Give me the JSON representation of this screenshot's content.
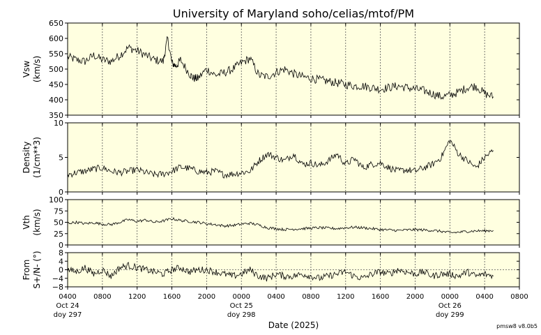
{
  "title": "University of Maryland  soho/celias/mtof/PM",
  "credit": "pmsw8 v8.0b5",
  "x_axis": {
    "label": "Date (2025)",
    "ticks": [
      "0400",
      "0800",
      "1200",
      "1600",
      "2000",
      "0000",
      "0400",
      "0800",
      "1200",
      "1600",
      "2000",
      "0000",
      "0400",
      "0800"
    ],
    "day_labels": [
      {
        "tick_index": 0,
        "date": "Oct 24",
        "doy": "doy 297"
      },
      {
        "tick_index": 5,
        "date": "Oct 25",
        "doy": "doy 298"
      },
      {
        "tick_index": 11,
        "date": "Oct 26",
        "doy": "doy 299"
      }
    ],
    "range_hours": [
      4,
      56
    ]
  },
  "colors": {
    "panel_bg": "#ffffe0",
    "line": "#000000",
    "grid": "#555555"
  },
  "chart_data": [
    {
      "type": "line",
      "ylabel_lines": [
        "Vsw",
        "(km/s)"
      ],
      "ylim": [
        350,
        650
      ],
      "yticks": [
        350,
        400,
        450,
        500,
        550,
        600,
        650
      ],
      "series": [
        {
          "x": [
            4,
            5,
            6,
            7,
            8,
            9,
            10,
            11,
            12,
            13,
            14,
            15,
            15.5,
            16,
            16.5,
            17,
            18,
            18.5,
            19,
            20,
            21,
            22,
            23,
            24,
            25,
            26,
            27,
            28,
            29,
            30,
            31,
            32,
            33,
            34,
            35,
            36,
            37,
            38,
            39,
            40,
            41,
            42,
            43,
            44,
            45,
            46,
            47,
            48,
            49,
            50,
            51,
            52,
            53
          ],
          "y": [
            540,
            530,
            525,
            545,
            530,
            525,
            545,
            570,
            560,
            545,
            530,
            525,
            600,
            520,
            510,
            530,
            485,
            470,
            470,
            500,
            480,
            488,
            500,
            520,
            535,
            480,
            475,
            490,
            500,
            485,
            475,
            470,
            465,
            460,
            455,
            450,
            445,
            445,
            440,
            435,
            440,
            445,
            440,
            435,
            430,
            420,
            410,
            415,
            425,
            440,
            445,
            420,
            410
          ]
        }
      ]
    },
    {
      "type": "line",
      "ylabel_lines": [
        "Density",
        "(1/cm**3)"
      ],
      "ylim": [
        0,
        10
      ],
      "yticks": [
        0,
        5,
        10
      ],
      "series": [
        {
          "x": [
            4,
            5,
            6,
            7,
            8,
            9,
            10,
            11,
            12,
            13,
            14,
            15,
            16,
            17,
            18,
            19,
            20,
            21,
            22,
            23,
            24,
            25,
            26,
            27,
            28,
            29,
            30,
            31,
            32,
            33,
            34,
            35,
            36,
            37,
            38,
            39,
            40,
            41,
            42,
            43,
            44,
            45,
            46,
            47,
            48,
            49,
            50,
            51,
            52,
            53
          ],
          "y": [
            2.5,
            2.8,
            3.0,
            3.3,
            3.5,
            3.0,
            2.8,
            3.0,
            3.2,
            2.8,
            2.5,
            2.6,
            3.0,
            3.6,
            3.4,
            3.0,
            2.8,
            3.0,
            2.5,
            2.6,
            2.8,
            3.0,
            4.5,
            5.5,
            5.0,
            4.5,
            5.5,
            4.0,
            4.2,
            3.8,
            4.5,
            5.5,
            4.0,
            4.8,
            3.5,
            4.0,
            4.2,
            3.5,
            3.0,
            3.2,
            3.0,
            3.5,
            4.0,
            5.0,
            7.5,
            5.5,
            4.5,
            3.5,
            5.0,
            6.0
          ]
        }
      ]
    },
    {
      "type": "line",
      "ylabel_lines": [
        "Vth",
        "(km/s)"
      ],
      "ylim": [
        0,
        100
      ],
      "yticks": [
        0,
        25,
        50,
        75,
        100
      ],
      "series": [
        {
          "x": [
            4,
            5,
            6,
            7,
            8,
            9,
            10,
            11,
            12,
            13,
            14,
            15,
            16,
            17,
            18,
            19,
            20,
            21,
            22,
            23,
            24,
            25,
            26,
            27,
            28,
            29,
            30,
            31,
            32,
            33,
            34,
            35,
            36,
            37,
            38,
            39,
            40,
            41,
            42,
            43,
            44,
            45,
            46,
            47,
            48,
            49,
            50,
            51,
            52,
            53
          ],
          "y": [
            48,
            50,
            47,
            49,
            46,
            45,
            50,
            56,
            52,
            55,
            50,
            53,
            58,
            54,
            52,
            50,
            47,
            45,
            42,
            43,
            46,
            48,
            44,
            38,
            36,
            34,
            35,
            36,
            37,
            38,
            37,
            36,
            38,
            39,
            38,
            36,
            34,
            33,
            32,
            33,
            34,
            33,
            32,
            30,
            27,
            28,
            30,
            31,
            31,
            32
          ]
        }
      ]
    },
    {
      "type": "line",
      "ylabel_lines": [
        "From",
        "S+/N- (°)"
      ],
      "ylim": [
        -8,
        8
      ],
      "yticks": [
        -8,
        -4,
        0,
        4,
        8
      ],
      "ytick_labels": [
        "−8",
        "−4",
        "0",
        "4",
        "8"
      ],
      "series": [
        {
          "x": [
            4,
            5,
            6,
            7,
            8,
            9,
            10,
            11,
            12,
            13,
            14,
            15,
            16,
            17,
            18,
            19,
            20,
            21,
            22,
            23,
            24,
            25,
            26,
            27,
            28,
            29,
            30,
            31,
            32,
            33,
            34,
            35,
            36,
            37,
            38,
            39,
            40,
            41,
            42,
            43,
            44,
            45,
            46,
            47,
            48,
            49,
            50,
            51,
            52,
            53
          ],
          "y": [
            0,
            -1,
            1,
            -2,
            0,
            -3,
            1,
            2,
            1,
            0,
            -1,
            -2,
            0,
            1,
            -1,
            0,
            0,
            -1,
            -2,
            -3,
            -2,
            0,
            -3,
            -4,
            -2,
            -3,
            -3,
            -2,
            -3,
            -4,
            -3,
            -2,
            -1,
            -3,
            -4,
            -2,
            -1,
            -2,
            0,
            -1,
            -2,
            -1,
            -3,
            -2,
            -2,
            -3,
            -1,
            -3,
            -2,
            -3
          ]
        }
      ]
    }
  ]
}
